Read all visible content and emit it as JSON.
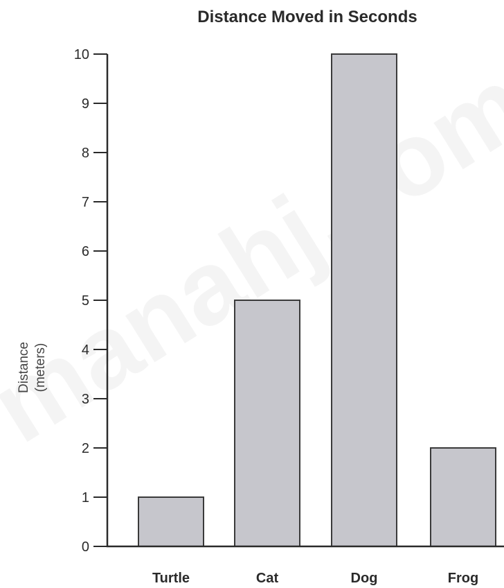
{
  "chart_data": {
    "type": "bar",
    "title": "Distance Moved in Seconds",
    "ylabel_line1": "Distance",
    "ylabel_line2": "(meters)",
    "xlabel": "",
    "categories": [
      "Turtle",
      "Cat",
      "Dog",
      "Frog"
    ],
    "values": [
      1,
      5,
      10,
      2
    ],
    "ylim": [
      0,
      10
    ],
    "yticks": [
      0,
      1,
      2,
      3,
      4,
      5,
      6,
      7,
      8,
      9,
      10
    ],
    "grid": false,
    "legend": "none",
    "colors": {
      "bar": "#c6c6cc",
      "outline": "#3a3a3a",
      "text": "#2a2a2a"
    }
  },
  "watermark": "manahj.com"
}
